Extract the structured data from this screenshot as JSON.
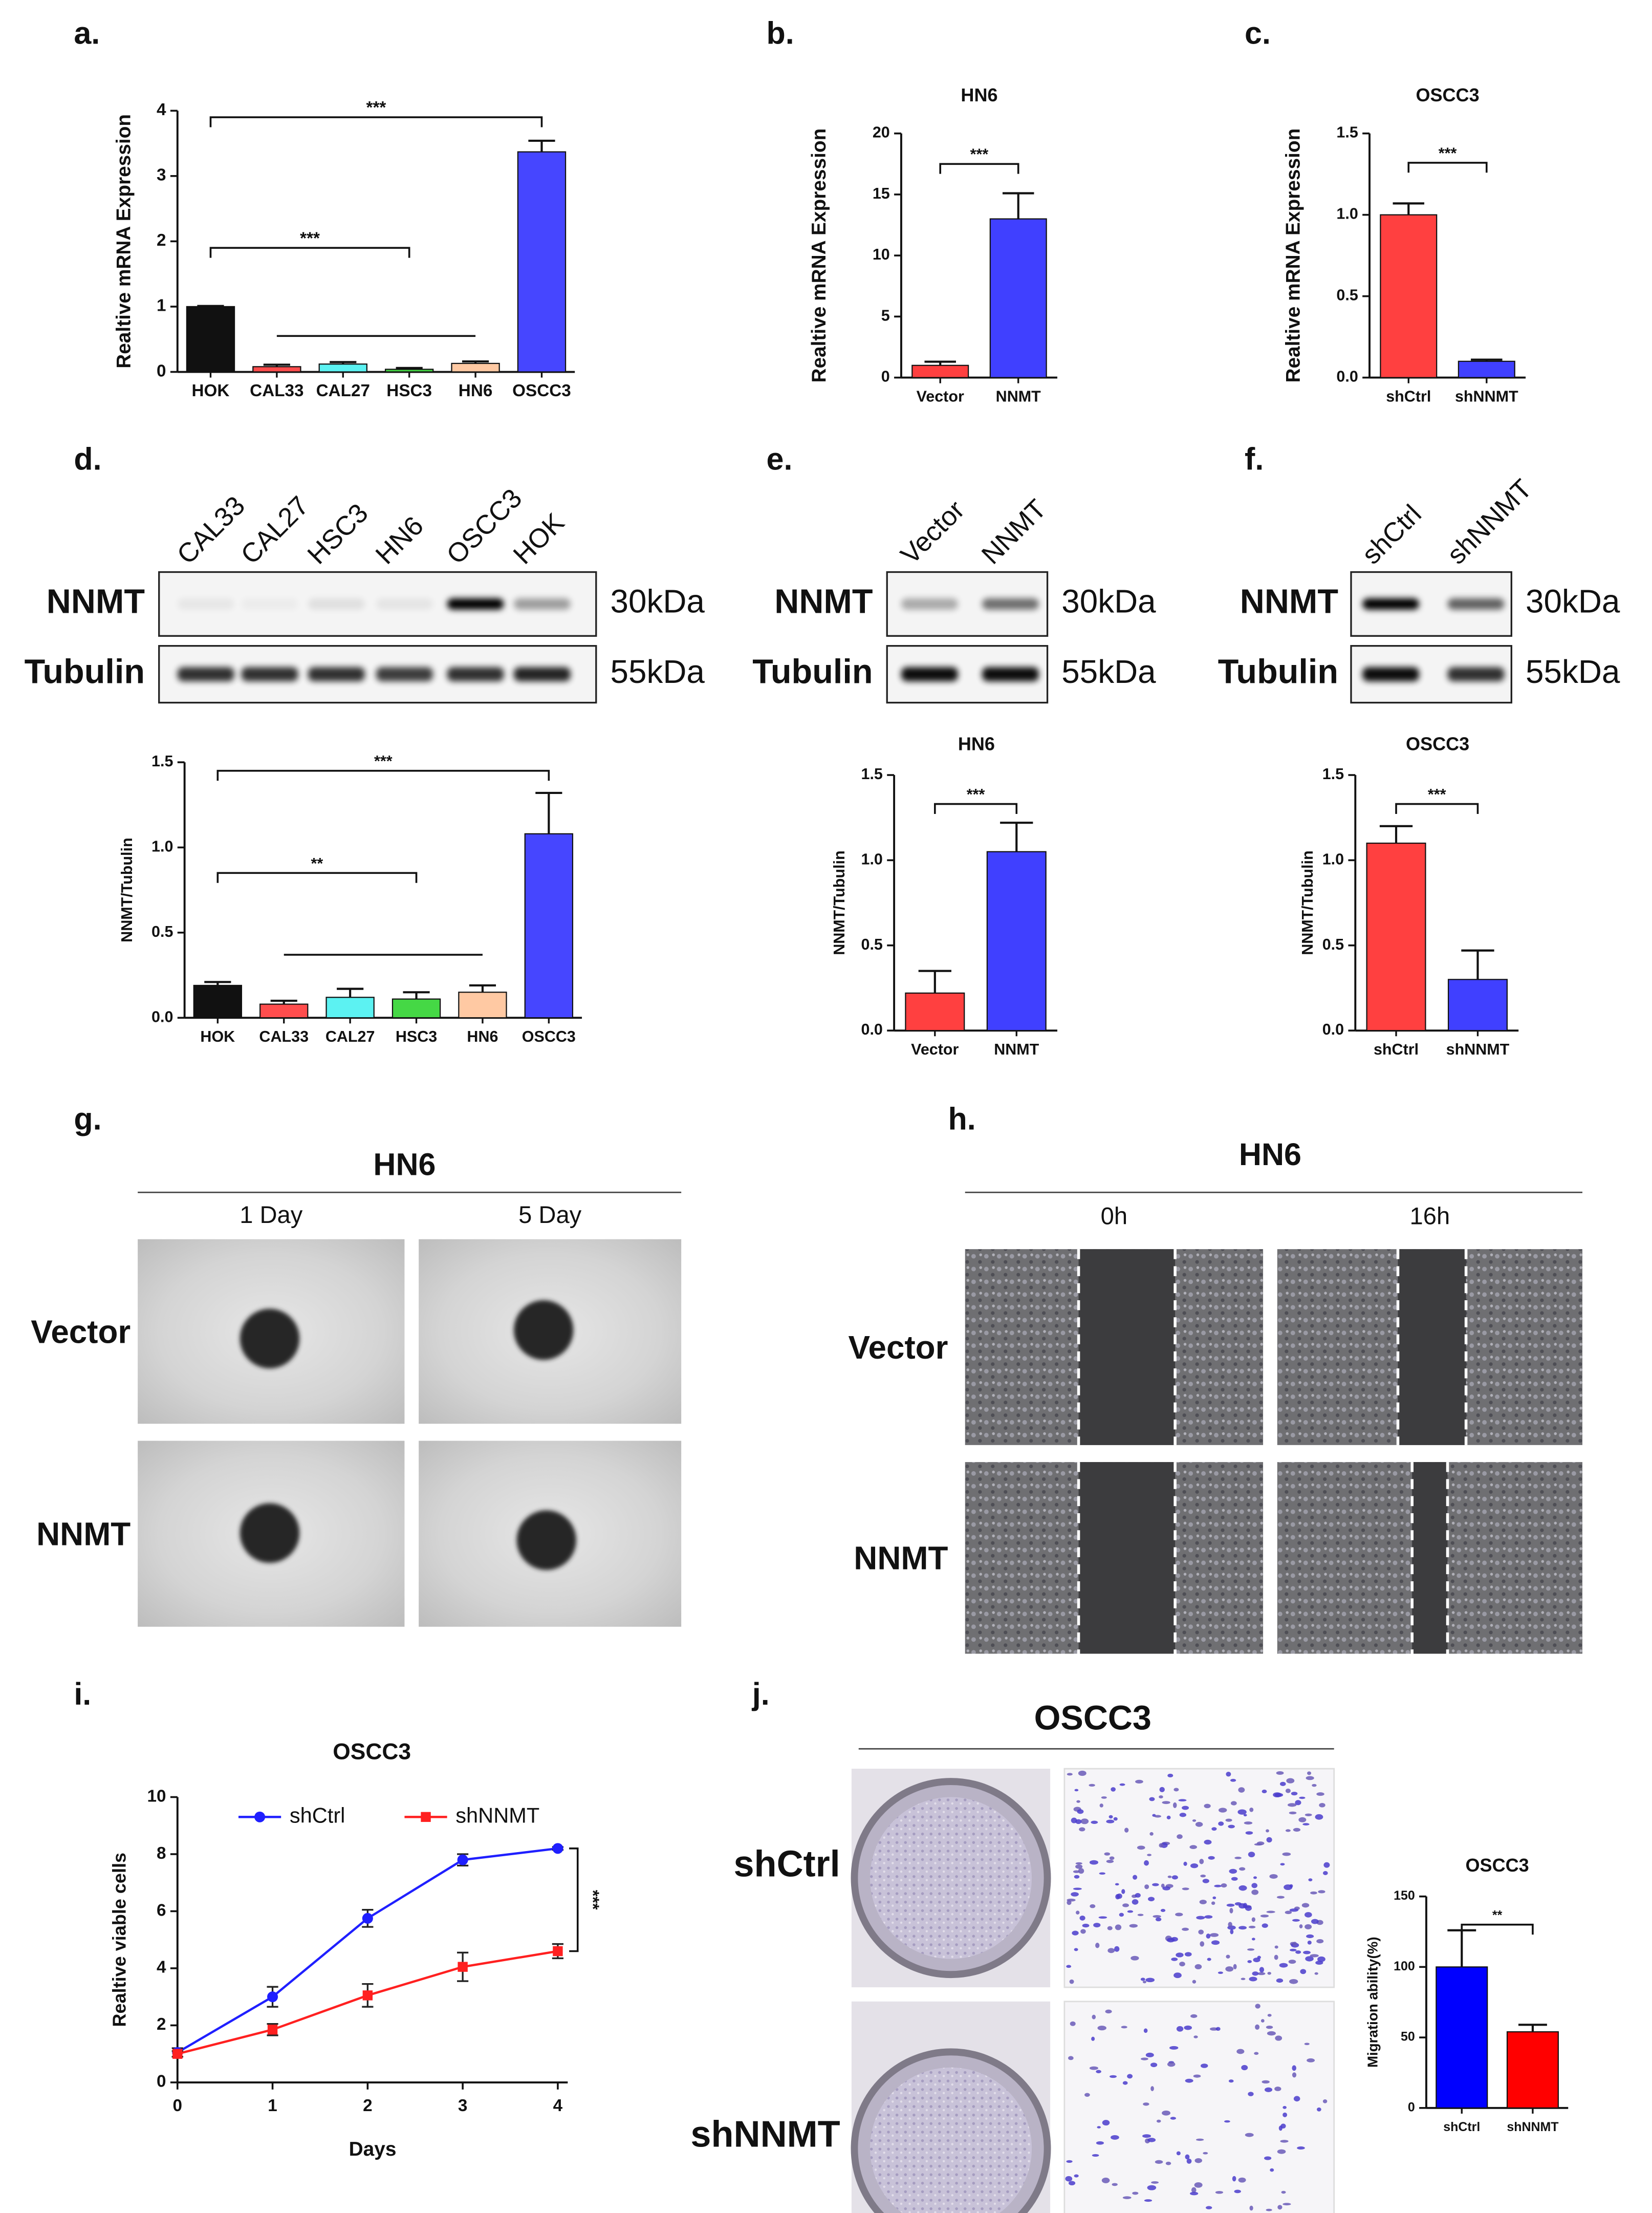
{
  "panel_labels": [
    "a.",
    "b.",
    "c.",
    "d.",
    "e.",
    "f.",
    "g.",
    "h.",
    "i.",
    "j."
  ],
  "blots": [
    {
      "lanes": [
        "CAL33",
        "CAL27",
        "HSC3",
        "HN6",
        "OSCC3",
        "HOK"
      ],
      "rows": [
        "NNMT",
        "Tubulin"
      ],
      "sizes": [
        "30kDa",
        "55kDa"
      ]
    },
    {
      "lanes": [
        "Vector",
        "NNMT"
      ],
      "rows": [
        "NNMT",
        "Tubulin"
      ],
      "sizes": [
        "30kDa",
        "55kDa"
      ]
    },
    {
      "lanes": [
        "shCtrl",
        "shNNMT"
      ],
      "rows": [
        "NNMT",
        "Tubulin"
      ],
      "sizes": [
        "30kDa",
        "55kDa"
      ]
    }
  ],
  "images": [
    {
      "title": "HN6",
      "columns": [
        "1 Day",
        "5 Day"
      ],
      "rows": [
        "Vector",
        "NNMT"
      ]
    },
    {
      "title": "HN6",
      "columns": [
        "0h",
        "16h"
      ],
      "rows": [
        "Vector",
        "NNMT"
      ]
    },
    {
      "title": "OSCC3",
      "rows": [
        "shCtrl",
        "shNNMT"
      ]
    }
  ],
  "chart_data": [
    {
      "type": "bar",
      "y_label": "Realtive mRNA Expression",
      "categories": [
        "HOK",
        "CAL33",
        "CAL27",
        "HSC3",
        "HN6",
        "OSCC3"
      ],
      "values": [
        1.0,
        0.08,
        0.12,
        0.04,
        0.13,
        3.37
      ],
      "errors": [
        0.01,
        0.03,
        0.03,
        0.02,
        0.03,
        0.17
      ],
      "colors": [
        "#111111",
        "#ff4d4d",
        "#5cf2f2",
        "#45d845",
        "#ffc9a3",
        "#4646ff"
      ],
      "ylim": [
        0,
        4
      ],
      "yticks": [
        0,
        1,
        2,
        3,
        4
      ],
      "significance": [
        {
          "from": 0,
          "to": 5,
          "y": 3.9,
          "label": "***"
        },
        {
          "from": 0,
          "to": 3,
          "y": 1.9,
          "label": "***"
        },
        {
          "from": 1,
          "to": 4,
          "y": 0.55
        }
      ]
    },
    {
      "type": "bar",
      "title": "HN6",
      "y_label": "Realtive mRNA Expression",
      "categories": [
        "Vector",
        "NNMT"
      ],
      "values": [
        1.0,
        13.0
      ],
      "errors": [
        0.3,
        2.1
      ],
      "colors": [
        "#ff4040",
        "#4040ff"
      ],
      "ylim": [
        0,
        20
      ],
      "yticks": [
        0,
        5,
        10,
        15,
        20
      ],
      "significance": [
        {
          "from": 0,
          "to": 1,
          "y": 17.5,
          "label": "***"
        }
      ]
    },
    {
      "type": "bar",
      "title": "OSCC3",
      "y_label": "Realtive mRNA Expression",
      "categories": [
        "shCtrl",
        "shNNMT"
      ],
      "values": [
        1.0,
        0.1
      ],
      "errors": [
        0.07,
        0.01
      ],
      "colors": [
        "#ff4040",
        "#4040ff"
      ],
      "ylim": [
        0,
        1.5
      ],
      "yticks": [
        {
          "value": 0,
          "label": "0.0"
        },
        {
          "value": 0.5,
          "label": "0.5"
        },
        {
          "value": 1,
          "label": "1.0"
        },
        {
          "value": 1.5,
          "label": "1.5"
        }
      ],
      "significance": [
        {
          "from": 0,
          "to": 1,
          "y": 1.32,
          "label": "***"
        }
      ]
    },
    {
      "type": "bar",
      "y_label": "NNMT/Tubulin",
      "categories": [
        "HOK",
        "CAL33",
        "CAL27",
        "HSC3",
        "HN6",
        "OSCC3"
      ],
      "values": [
        0.19,
        0.08,
        0.12,
        0.11,
        0.15,
        1.08
      ],
      "errors": [
        0.02,
        0.02,
        0.05,
        0.04,
        0.04,
        0.24
      ],
      "colors": [
        "#111111",
        "#ff4d4d",
        "#5cf2f2",
        "#45d845",
        "#ffc9a3",
        "#4646ff"
      ],
      "ylim": [
        0,
        1.5
      ],
      "yticks": [
        {
          "value": 0,
          "label": "0.0"
        },
        {
          "value": 0.5,
          "label": "0.5"
        },
        {
          "value": 1,
          "label": "1.0"
        },
        {
          "value": 1.5,
          "label": "1.5"
        }
      ],
      "significance": [
        {
          "from": 0,
          "to": 5,
          "y": 1.45,
          "label": "***"
        },
        {
          "from": 0,
          "to": 3,
          "y": 0.85,
          "label": "**"
        },
        {
          "from": 1,
          "to": 4,
          "y": 0.37
        }
      ]
    },
    {
      "type": "bar",
      "title": "HN6",
      "y_label": "NNMT/Tubulin",
      "categories": [
        "Vector",
        "NNMT"
      ],
      "values": [
        0.22,
        1.05
      ],
      "errors": [
        0.13,
        0.17
      ],
      "colors": [
        "#ff4040",
        "#4040ff"
      ],
      "ylim": [
        0,
        1.5
      ],
      "yticks": [
        {
          "value": 0,
          "label": "0.0"
        },
        {
          "value": 0.5,
          "label": "0.5"
        },
        {
          "value": 1,
          "label": "1.0"
        },
        {
          "value": 1.5,
          "label": "1.5"
        }
      ],
      "significance": [
        {
          "from": 0,
          "to": 1,
          "y": 1.33,
          "label": "***"
        }
      ]
    },
    {
      "type": "bar",
      "title": "OSCC3",
      "y_label": "NNMT/Tubulin",
      "categories": [
        "shCtrl",
        "shNNMT"
      ],
      "values": [
        1.1,
        0.3
      ],
      "errors": [
        0.1,
        0.17
      ],
      "colors": [
        "#ff4040",
        "#4040ff"
      ],
      "ylim": [
        0,
        1.5
      ],
      "yticks": [
        {
          "value": 0,
          "label": "0.0"
        },
        {
          "value": 0.5,
          "label": "0.5"
        },
        {
          "value": 1,
          "label": "1.0"
        },
        {
          "value": 1.5,
          "label": "1.5"
        }
      ],
      "significance": [
        {
          "from": 0,
          "to": 1,
          "y": 1.33,
          "label": "***"
        }
      ]
    },
    {
      "type": "line",
      "title": "OSCC3",
      "x_label": "Days",
      "y_label": "Realtive viable cells",
      "x": [
        0,
        1,
        2,
        3,
        4
      ],
      "xlim": [
        0,
        4
      ],
      "xticks": [
        0,
        1,
        2,
        3,
        4
      ],
      "ylim": [
        0,
        10
      ],
      "yticks": [
        0,
        2,
        4,
        6,
        8,
        10
      ],
      "legend": "top",
      "series": [
        {
          "name": "shCtrl",
          "color": "#1f1fff",
          "marker": "circle",
          "values": [
            1.05,
            3.0,
            5.75,
            7.8,
            8.2
          ],
          "errors": [
            0.15,
            0.35,
            0.3,
            0.2,
            0.05
          ]
        },
        {
          "name": "shNNMT",
          "color": "#ff2020",
          "marker": "square",
          "values": [
            1.0,
            1.85,
            3.05,
            4.05,
            4.6
          ],
          "errors": [
            0.1,
            0.2,
            0.4,
            0.5,
            0.25
          ]
        }
      ],
      "significance": [
        {
          "between": [
            0,
            1
          ],
          "index": 4,
          "label": "***"
        }
      ]
    },
    {
      "type": "bar",
      "title": "OSCC3",
      "y_label": "Migration ability(%)",
      "categories": [
        "shCtrl",
        "shNNMT"
      ],
      "values": [
        100,
        54
      ],
      "errors": [
        26,
        5
      ],
      "colors": [
        "#0000ff",
        "#ff0000"
      ],
      "ylim": [
        0,
        150
      ],
      "yticks": [
        0,
        50,
        100,
        150
      ],
      "significance": [
        {
          "from": 0,
          "to": 1,
          "y": 130,
          "label": "**"
        }
      ]
    }
  ]
}
